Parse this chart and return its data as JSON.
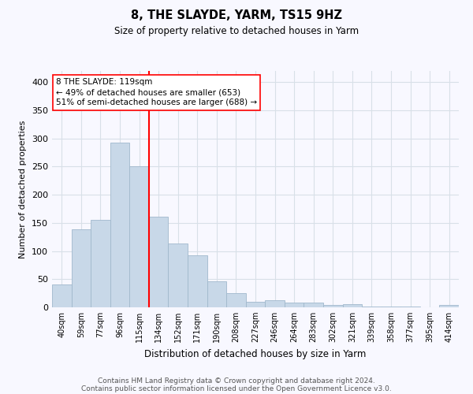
{
  "title": "8, THE SLAYDE, YARM, TS15 9HZ",
  "subtitle": "Size of property relative to detached houses in Yarm",
  "xlabel": "Distribution of detached houses by size in Yarm",
  "ylabel": "Number of detached properties",
  "footnote1": "Contains HM Land Registry data © Crown copyright and database right 2024.",
  "footnote2": "Contains public sector information licensed under the Open Government Licence v3.0.",
  "bar_labels": [
    "40sqm",
    "59sqm",
    "77sqm",
    "96sqm",
    "115sqm",
    "134sqm",
    "152sqm",
    "171sqm",
    "190sqm",
    "208sqm",
    "227sqm",
    "246sqm",
    "264sqm",
    "283sqm",
    "302sqm",
    "321sqm",
    "339sqm",
    "358sqm",
    "377sqm",
    "395sqm",
    "414sqm"
  ],
  "bar_values": [
    40,
    139,
    155,
    292,
    251,
    161,
    113,
    92,
    46,
    25,
    10,
    13,
    8,
    8,
    4,
    5,
    1,
    1,
    1,
    0,
    4
  ],
  "bar_color": "#c8d8e8",
  "bar_edge_color": "#a0b8cc",
  "vline_x_index": 4,
  "vline_color": "red",
  "annotation_line1": "8 THE SLAYDE: 119sqm",
  "annotation_line2": "← 49% of detached houses are smaller (653)",
  "annotation_line3": "51% of semi-detached houses are larger (688) →",
  "annotation_box_color": "white",
  "annotation_box_edge": "red",
  "ylim": [
    0,
    420
  ],
  "yticks": [
    0,
    50,
    100,
    150,
    200,
    250,
    300,
    350,
    400
  ],
  "grid_color": "#d8e0e8",
  "background_color": "#f8f8ff",
  "title_fontsize": 10.5,
  "subtitle_fontsize": 8.5,
  "tick_fontsize": 7,
  "ylabel_fontsize": 8,
  "xlabel_fontsize": 8.5,
  "footnote_fontsize": 6.5
}
